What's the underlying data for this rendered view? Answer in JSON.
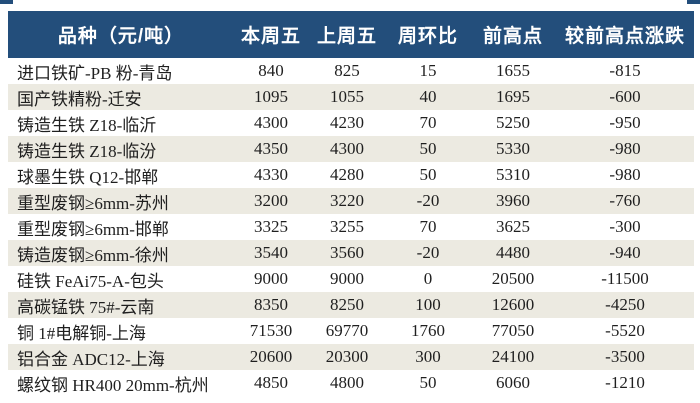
{
  "table": {
    "columns": [
      "品种（元/吨）",
      "本周五",
      "上周五",
      "周环比",
      "前高点",
      "较前高点涨跌"
    ],
    "rows": [
      {
        "name": "进口铁矿-PB 粉-青岛",
        "values": [
          "840",
          "825",
          "15",
          "1655",
          "-815"
        ]
      },
      {
        "name": "国产铁精粉-迁安",
        "values": [
          "1095",
          "1055",
          "40",
          "1695",
          "-600"
        ]
      },
      {
        "name": "铸造生铁 Z18-临沂",
        "values": [
          "4300",
          "4230",
          "70",
          "5250",
          "-950"
        ]
      },
      {
        "name": "铸造生铁 Z18-临汾",
        "values": [
          "4350",
          "4300",
          "50",
          "5330",
          "-980"
        ]
      },
      {
        "name": "球墨生铁 Q12-邯郸",
        "values": [
          "4330",
          "4280",
          "50",
          "5310",
          "-980"
        ]
      },
      {
        "name": "重型废钢≥6mm-苏州",
        "values": [
          "3200",
          "3220",
          "-20",
          "3960",
          "-760"
        ]
      },
      {
        "name": "重型废钢≥6mm-邯郸",
        "values": [
          "3325",
          "3255",
          "70",
          "3625",
          "-300"
        ]
      },
      {
        "name": "铸造废钢≥6mm-徐州",
        "values": [
          "3540",
          "3560",
          "-20",
          "4480",
          "-940"
        ]
      },
      {
        "name": "硅铁 FeAi75-A-包头",
        "values": [
          "9000",
          "9000",
          "0",
          "20500",
          "-11500"
        ]
      },
      {
        "name": "高碳锰铁 75#-云南",
        "values": [
          "8350",
          "8250",
          "100",
          "12600",
          "-4250"
        ]
      },
      {
        "name": "铜 1#电解铜-上海",
        "values": [
          "71530",
          "69770",
          "1760",
          "77050",
          "-5520"
        ]
      },
      {
        "name": "铝合金 ADC12-上海",
        "values": [
          "20600",
          "20300",
          "300",
          "24100",
          "-3500"
        ]
      },
      {
        "name": "螺纹钢 HR400 20mm-杭州",
        "values": [
          "4850",
          "4800",
          "50",
          "6060",
          "-1210"
        ]
      }
    ]
  },
  "colors": {
    "header_bg": "#234E7B",
    "header_text": "#FFFFFF",
    "stripe_bg": "#ECEAE1",
    "body_text": "#1F1F1F"
  }
}
